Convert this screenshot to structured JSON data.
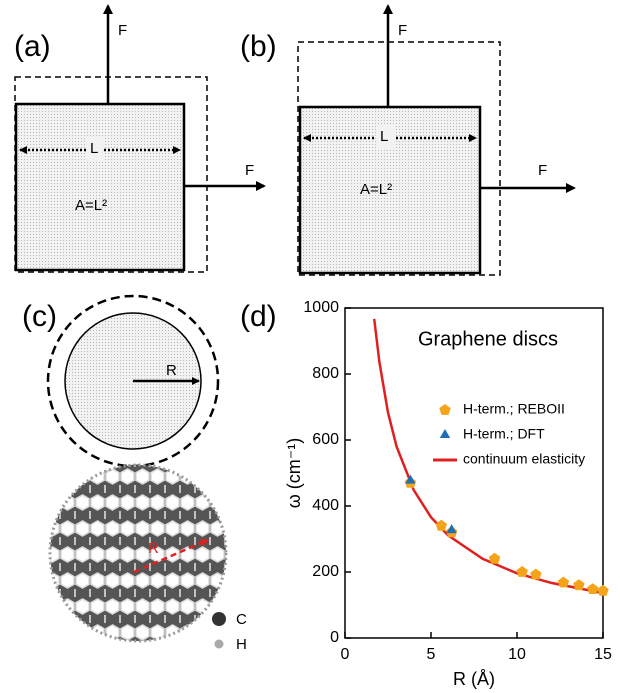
{
  "panels": {
    "a": {
      "label": "(a)",
      "force_up": "F",
      "force_right": "F",
      "length": "L",
      "area": "A=L²"
    },
    "b": {
      "label": "(b)",
      "force_up": "F",
      "force_right": "F",
      "length": "L",
      "area": "A=L²"
    },
    "c": {
      "label": "(c)",
      "radius": "R",
      "lattice_radius": "R",
      "atom_c": "C",
      "atom_h": "H"
    },
    "d": {
      "label": "(d)"
    }
  },
  "chart_data": {
    "type": "scatter",
    "title": "Graphene discs",
    "x_label": "R (Å)",
    "y_label": "ω (cm⁻¹)",
    "xlim": [
      0,
      15
    ],
    "ylim": [
      0,
      1000
    ],
    "xticks": [
      0,
      5,
      10,
      15
    ],
    "yticks": [
      0,
      200,
      400,
      600,
      800,
      1000
    ],
    "series": [
      {
        "name": "H-term.; REBOII",
        "color": "#f5a31a",
        "marker": "pentagon",
        "x": [
          3.8,
          5.6,
          6.2,
          8.7,
          10.3,
          11.1,
          12.7,
          13.6,
          14.4,
          15
        ],
        "values": [
          470,
          340,
          320,
          240,
          200,
          192,
          168,
          160,
          148,
          143
        ]
      },
      {
        "name": "H-term.; DFT",
        "color": "#1f6fb5",
        "marker": "triangle",
        "x": [
          3.8,
          6.2
        ],
        "values": [
          480,
          330
        ]
      },
      {
        "name": "continuum elasticity",
        "color": "#e02020",
        "marker": "line",
        "x": [
          1.7,
          2,
          2.5,
          3,
          4,
          5,
          6,
          8,
          10,
          12,
          15
        ],
        "values": [
          967,
          836,
          683,
          580,
          448,
          366,
          311,
          240,
          196,
          167,
          136
        ]
      }
    ]
  }
}
